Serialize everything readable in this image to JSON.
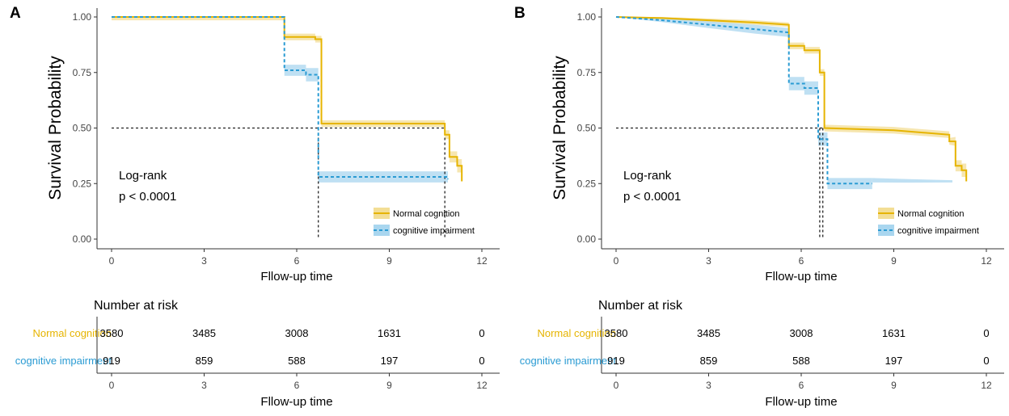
{
  "colors": {
    "normal": "#E6B400",
    "normal_band": "#F3DE95",
    "impaired": "#2A9BD3",
    "impaired_band": "#A9D6EF",
    "axis": "#333333",
    "text": "#000000"
  },
  "chart_data": [
    {
      "panel_label": "A",
      "type": "line",
      "title": "",
      "ylabel": "Survival Probability",
      "xlabel": "Fllow-up time",
      "xlim": [
        0,
        12
      ],
      "ylim": [
        0,
        1
      ],
      "x_ticks": [
        "0",
        "3",
        "6",
        "9",
        "12"
      ],
      "y_ticks": [
        "0.00",
        "0.25",
        "0.50",
        "0.75",
        "1.00"
      ],
      "annotation_test": "Log-rank",
      "annotation_p": "p < 0.0001",
      "median_line_y": 0.5,
      "legend": [
        "Normal cognition",
        "cognitive impairment"
      ],
      "series": [
        {
          "name": "Normal cognition",
          "style": "solid",
          "median_x": 10.8,
          "points": [
            [
              0,
              1.0
            ],
            [
              5.6,
              1.0
            ],
            [
              5.6,
              0.91
            ],
            [
              6.6,
              0.91
            ],
            [
              6.6,
              0.9
            ],
            [
              6.8,
              0.9
            ],
            [
              6.8,
              0.52
            ],
            [
              10.8,
              0.52
            ],
            [
              10.8,
              0.47
            ],
            [
              10.95,
              0.47
            ],
            [
              10.95,
              0.37
            ],
            [
              11.2,
              0.37
            ],
            [
              11.2,
              0.33
            ],
            [
              11.35,
              0.33
            ],
            [
              11.35,
              0.26
            ]
          ],
          "band": [
            0.015,
            0.015,
            0.015,
            0.015,
            0.015,
            0.015,
            0.015,
            0.015,
            0.02,
            0.02,
            0.025,
            0.025,
            0.03,
            0.03,
            0.03
          ]
        },
        {
          "name": "cognitive impairment",
          "style": "dashed",
          "median_x": 6.7,
          "points": [
            [
              0,
              1.0
            ],
            [
              5.6,
              1.0
            ],
            [
              5.6,
              0.76
            ],
            [
              6.3,
              0.76
            ],
            [
              6.3,
              0.74
            ],
            [
              6.7,
              0.74
            ],
            [
              6.7,
              0.28
            ],
            [
              10.9,
              0.28
            ],
            [
              10.9,
              0.27
            ]
          ],
          "band": [
            0.0,
            0.0,
            0.025,
            0.025,
            0.03,
            0.03,
            0.025,
            0.025,
            0.025
          ]
        }
      ],
      "risk_table": {
        "title": "Number at risk",
        "xlabel": "Fllow-up time",
        "x_ticks": [
          "0",
          "3",
          "6",
          "9",
          "12"
        ],
        "rows": [
          {
            "name": "Normal cognition",
            "values": [
              "3580",
              "3485",
              "3008",
              "1631",
              "0"
            ]
          },
          {
            "name": "cognitive impairment",
            "values": [
              "919",
              "859",
              "588",
              "197",
              "0"
            ]
          }
        ]
      }
    },
    {
      "panel_label": "B",
      "type": "line",
      "title": "",
      "ylabel": "Survival Probability",
      "xlabel": "Fllow-up time",
      "xlim": [
        0,
        12
      ],
      "ylim": [
        0,
        1
      ],
      "x_ticks": [
        "0",
        "3",
        "6",
        "9",
        "12"
      ],
      "y_ticks": [
        "0.00",
        "0.25",
        "0.50",
        "0.75",
        "1.00"
      ],
      "annotation_test": "Log-rank",
      "annotation_p": "p < 0.0001",
      "median_line_y": 0.5,
      "legend": [
        "Normal cognition",
        "cognitive impairment"
      ],
      "series": [
        {
          "name": "Normal cognition",
          "style": "solid",
          "median_x": 6.7,
          "points": [
            [
              0,
              1.0
            ],
            [
              1.5,
              0.995
            ],
            [
              3,
              0.985
            ],
            [
              4.5,
              0.975
            ],
            [
              5.6,
              0.965
            ],
            [
              5.6,
              0.87
            ],
            [
              6.1,
              0.87
            ],
            [
              6.1,
              0.85
            ],
            [
              6.6,
              0.85
            ],
            [
              6.6,
              0.75
            ],
            [
              6.75,
              0.75
            ],
            [
              6.75,
              0.5
            ],
            [
              9,
              0.49
            ],
            [
              10.8,
              0.47
            ],
            [
              10.8,
              0.44
            ],
            [
              11.0,
              0.44
            ],
            [
              11.0,
              0.33
            ],
            [
              11.2,
              0.33
            ],
            [
              11.2,
              0.31
            ],
            [
              11.35,
              0.31
            ],
            [
              11.35,
              0.26
            ]
          ],
          "band": [
            0.0,
            0.005,
            0.008,
            0.01,
            0.01,
            0.015,
            0.015,
            0.015,
            0.015,
            0.015,
            0.015,
            0.015,
            0.015,
            0.015,
            0.015,
            0.02,
            0.025,
            0.025,
            0.03,
            0.03,
            0.03
          ]
        },
        {
          "name": "cognitive impairment",
          "style": "dashed",
          "median_x": 6.6,
          "points": [
            [
              0,
              1.0
            ],
            [
              1.5,
              0.985
            ],
            [
              3,
              0.965
            ],
            [
              4.5,
              0.945
            ],
            [
              5.6,
              0.93
            ],
            [
              5.6,
              0.7
            ],
            [
              6.1,
              0.7
            ],
            [
              6.1,
              0.68
            ],
            [
              6.55,
              0.68
            ],
            [
              6.55,
              0.45
            ],
            [
              6.85,
              0.45
            ],
            [
              6.85,
              0.25
            ],
            [
              8.3,
              0.25
            ]
          ],
          "band": [
            0.0,
            0.008,
            0.015,
            0.02,
            0.02,
            0.03,
            0.03,
            0.03,
            0.03,
            0.03,
            0.03,
            0.025,
            0.025
          ],
          "extra_band": [
            [
              8.3,
              0.265,
              0.01
            ],
            [
              9.5,
              0.262,
              0.008
            ],
            [
              10.9,
              0.26,
              0.005
            ]
          ]
        }
      ],
      "risk_table": {
        "title": "Number at risk",
        "xlabel": "Fllow-up time",
        "x_ticks": [
          "0",
          "3",
          "6",
          "9",
          "12"
        ],
        "rows": [
          {
            "name": "Normal cognition",
            "values": [
              "3580",
              "3485",
              "3008",
              "1631",
              "0"
            ]
          },
          {
            "name": "cognitive impairment",
            "values": [
              "919",
              "859",
              "588",
              "197",
              "0"
            ]
          }
        ]
      }
    }
  ]
}
